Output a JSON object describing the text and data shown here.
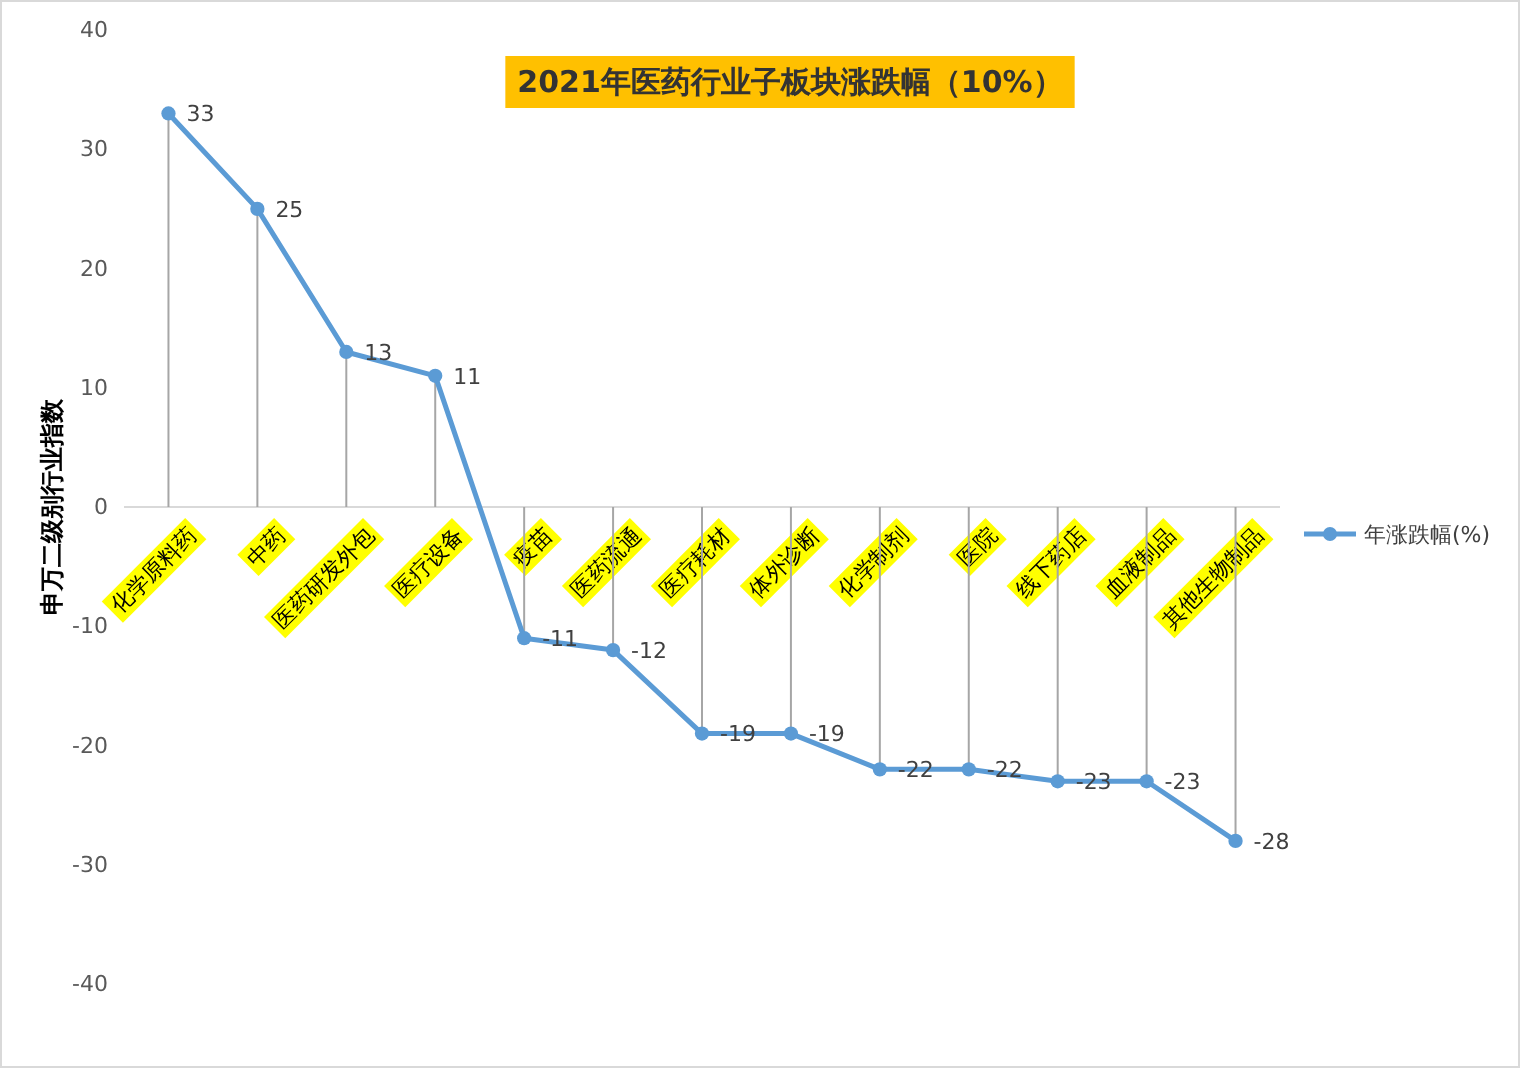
{
  "chart_data": {
    "type": "line",
    "title": "2021年医药行业子板块涨跌幅（10%）",
    "ylabel": "申万二级别行业指数",
    "categories": [
      "化学原料药",
      "中药",
      "医药研发外包",
      "医疗设备",
      "疫苗",
      "医药流通",
      "医疗耗材",
      "体外诊断",
      "化学制剂",
      "医院",
      "线下药店",
      "血液制品",
      "其他生物制品"
    ],
    "series": [
      {
        "name": "年涨跌幅(%)",
        "color": "#5b9bd5",
        "values": [
          33,
          25,
          13,
          11,
          -11,
          -12,
          -19,
          -19,
          -22,
          -22,
          -23,
          -23,
          -28
        ]
      }
    ],
    "ylim": [
      -40,
      40
    ],
    "yticks": [
      -40,
      -30,
      -20,
      -10,
      0,
      10,
      20,
      30,
      40
    ],
    "grid": false,
    "legend": "right",
    "marker": "circle",
    "line_style": "solid",
    "data_labels": true
  }
}
